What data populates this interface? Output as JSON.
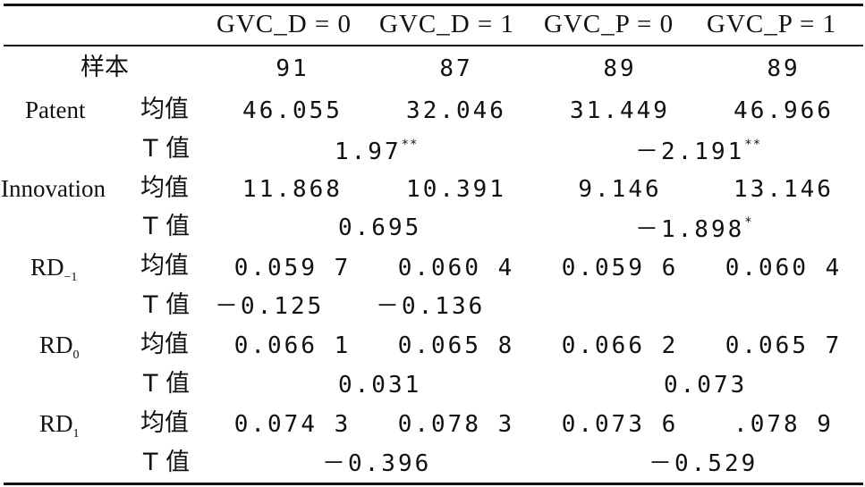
{
  "header": {
    "columns": [
      "GVC_D = 0",
      "GVC_D = 1",
      "GVC_P = 0",
      "GVC_P = 1"
    ]
  },
  "sample": {
    "label": "样本",
    "values": [
      "91",
      "87",
      "89",
      "89"
    ]
  },
  "rows": [
    {
      "variable": "Patent",
      "stat": "均值",
      "values": [
        "46.055",
        "32.046",
        "31.449",
        "46.966"
      ]
    },
    {
      "stat": "T 值",
      "t_d": "1.97",
      "t_d_sig": "**",
      "t_p": "－2.191",
      "t_p_sig": "**"
    },
    {
      "variable": "Innovation",
      "stat": "均值",
      "values": [
        "11.868",
        "10.391",
        "9.146",
        "13.146"
      ]
    },
    {
      "stat": "T 值",
      "t_d": "0.695",
      "t_p": "－1.898",
      "t_p_sig": "*"
    },
    {
      "variable": "RD",
      "variable_sub": "−1",
      "stat": "均值",
      "values": [
        "0.059 7",
        "0.060 4",
        "0.059 6",
        "0.060 4"
      ]
    },
    {
      "stat": "T 值",
      "t_d": "－0.125",
      "t_p": "－0.136"
    },
    {
      "variable": "RD",
      "variable_sub": "0",
      "stat": "均值",
      "values": [
        "0.066 1",
        "0.065 8",
        "0.066 2",
        "0.065 7"
      ]
    },
    {
      "stat": "T 值",
      "t_d": "0.031",
      "t_p": "0.073"
    },
    {
      "variable": "RD",
      "variable_sub": "1",
      "stat": "均值",
      "values": [
        "0.074 3",
        "0.078 3",
        "0.073 6",
        ".078 9"
      ]
    },
    {
      "stat": "T 值",
      "t_d": "－0.396",
      "t_p": "－0.529"
    }
  ]
}
